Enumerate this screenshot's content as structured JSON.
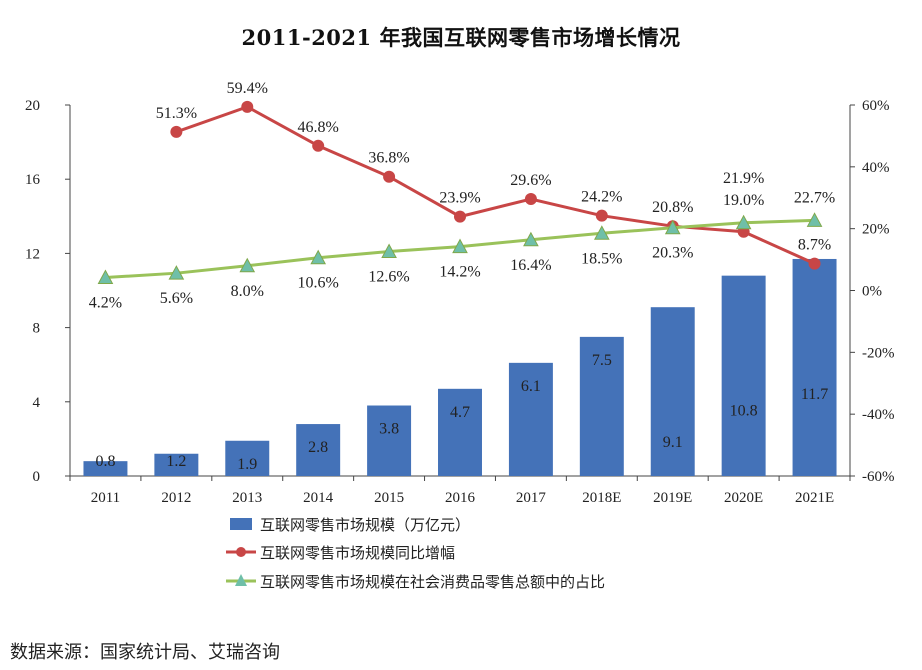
{
  "title": "2011-2021 年我国互联网零售市场增长情况",
  "source": "数据来源：国家统计局、艾瑞咨询",
  "colors": {
    "bar": "#4472b8",
    "growth": "#c84646",
    "share": "#9ac25a",
    "share_marker": "#6fbfa8"
  },
  "chart_data": {
    "type": "bar",
    "categories": [
      "2011",
      "2012",
      "2013",
      "2014",
      "2015",
      "2016",
      "2017",
      "2018E",
      "2019E",
      "2020E",
      "2021E"
    ],
    "series": [
      {
        "name": "互联网零售市场规模（万亿元）",
        "type": "bar",
        "axis": "left",
        "values": [
          0.8,
          1.2,
          1.9,
          2.8,
          3.8,
          4.7,
          6.1,
          7.5,
          9.1,
          10.8,
          11.7
        ],
        "labels": [
          "0.8",
          "1.2",
          "1.9",
          "2.8",
          "3.8",
          "4.7",
          "6.1",
          "7.5",
          "9.1",
          "10.8",
          "11.7"
        ]
      },
      {
        "name": "互联网零售市场规模同比增幅",
        "type": "line",
        "axis": "right",
        "values": [
          null,
          51.3,
          59.4,
          46.8,
          36.8,
          23.9,
          29.6,
          24.2,
          20.8,
          19.0,
          8.7
        ],
        "labels": [
          "",
          "51.3%",
          "59.4%",
          "46.8%",
          "36.8%",
          "23.9%",
          "29.6%",
          "24.2%",
          "20.8%",
          "19.0%",
          "8.7%"
        ]
      },
      {
        "name": "互联网零售市场规模在社会消费品零售总额中的占比",
        "type": "line",
        "axis": "right",
        "values": [
          4.2,
          5.6,
          8.0,
          10.6,
          12.6,
          14.2,
          16.4,
          18.5,
          20.3,
          21.9,
          22.7
        ],
        "labels": [
          "4.2%",
          "5.6%",
          "8.0%",
          "10.6%",
          "12.6%",
          "14.2%",
          "16.4%",
          "18.5%",
          "20.3%",
          "21.9%",
          "22.7%"
        ]
      }
    ],
    "y_left": {
      "min": 0,
      "max": 20,
      "ticks": [
        "0",
        "4",
        "8",
        "12",
        "16",
        "20"
      ]
    },
    "y_right": {
      "min": -60,
      "max": 60,
      "ticks": [
        "-60%",
        "-40%",
        "-20%",
        "0%",
        "20%",
        "40%",
        "60%"
      ]
    },
    "grid": false,
    "legend_position": "bottom-left"
  }
}
